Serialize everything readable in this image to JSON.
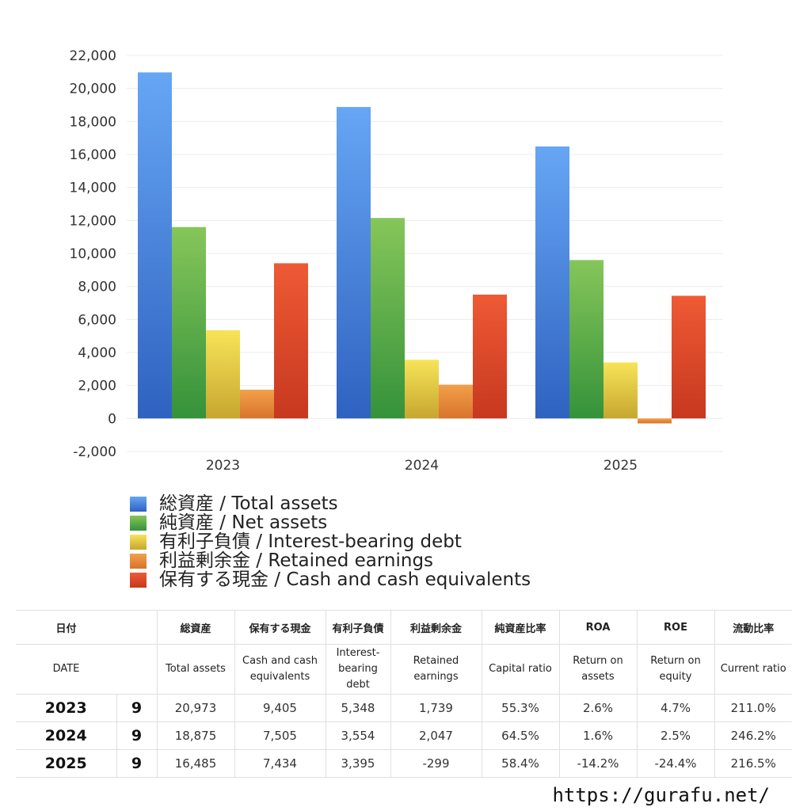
{
  "chart_data": {
    "type": "bar",
    "categories": [
      "2023",
      "2024",
      "2025"
    ],
    "ylim": [
      -2000,
      22000
    ],
    "yticks": [
      -2000,
      0,
      2000,
      4000,
      6000,
      8000,
      10000,
      12000,
      14000,
      16000,
      18000,
      20000,
      22000
    ],
    "ytick_labels": [
      "-2,000",
      "0",
      "2,000",
      "4,000",
      "6,000",
      "8,000",
      "10,000",
      "12,000",
      "14,000",
      "16,000",
      "18,000",
      "20,000",
      "22,000"
    ],
    "grid": true,
    "legend_position": "bottom",
    "series": [
      {
        "name": "総資産 / Total assets",
        "values": [
          20973,
          18875,
          16485
        ],
        "color_top": "#66a6f5",
        "color_bottom": "#2f62c0"
      },
      {
        "name": "純資産 / Net assets",
        "values": [
          11600,
          12150,
          9600
        ],
        "color_top": "#86c65a",
        "color_bottom": "#35923a"
      },
      {
        "name": "有利子負債 / Interest-bearing debt",
        "values": [
          5348,
          3554,
          3395
        ],
        "color_top": "#f7e458",
        "color_bottom": "#c7a630"
      },
      {
        "name": "利益剰余金 / Retained earnings",
        "values": [
          1739,
          2047,
          -299
        ],
        "color_top": "#f2a04a",
        "color_bottom": "#d8732c"
      },
      {
        "name": "保有する現金 /  Cash and cash equivalents",
        "values": [
          9405,
          7505,
          7434
        ],
        "color_top": "#ee5a35",
        "color_bottom": "#c7381f"
      }
    ]
  },
  "table": {
    "header_jp": {
      "date": "日付",
      "total_assets": "総資産",
      "cash": "保有する現金",
      "debt": "有利子負債",
      "retained": "利益剰余金",
      "capital_ratio": "純資産比率",
      "roa": "ROA",
      "roe": "ROE",
      "current_ratio": "流動比率"
    },
    "header_en": {
      "date": "DATE",
      "total_assets": "Total assets",
      "cash": "Cash and cash equivalents",
      "debt": "Interest-bearing debt",
      "retained": "Retained earnings",
      "capital_ratio": "Capital ratio",
      "roa": "Return on assets",
      "roe": "Return on equity",
      "current_ratio": "Current ratio"
    },
    "rows": [
      {
        "year": "2023",
        "month": "9",
        "total_assets": "20,973",
        "cash": "9,405",
        "debt": "5,348",
        "retained": "1,739",
        "capital_ratio": "55.3%",
        "roa": "2.6%",
        "roe": "4.7%",
        "current_ratio": "211.0%"
      },
      {
        "year": "2024",
        "month": "9",
        "total_assets": "18,875",
        "cash": "7,505",
        "debt": "3,554",
        "retained": "2,047",
        "capital_ratio": "64.5%",
        "roa": "1.6%",
        "roe": "2.5%",
        "current_ratio": "246.2%"
      },
      {
        "year": "2025",
        "month": "9",
        "total_assets": "16,485",
        "cash": "7,434",
        "debt": "3,395",
        "retained": "-299",
        "capital_ratio": "58.4%",
        "roa": "-14.2%",
        "roe": "-24.4%",
        "current_ratio": "216.5%"
      }
    ]
  },
  "colors": {
    "negative": "#e0482a",
    "grid": "#ececec"
  },
  "watermark": "https://gurafu.net/"
}
